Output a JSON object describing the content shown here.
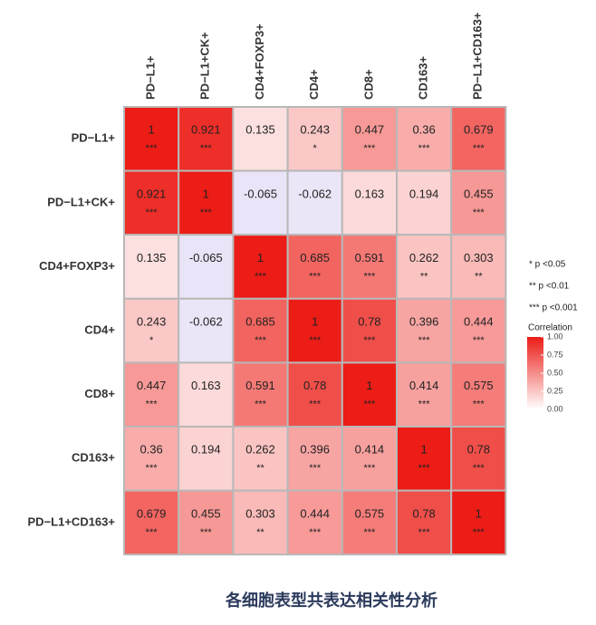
{
  "chart_data": {
    "type": "heatmap",
    "title": "各细胞表型共表达相关性分析",
    "columns": [
      "PD−L1+",
      "PD−L1+CK+",
      "CD4+FOXP3+",
      "CD4+",
      "CD8+",
      "CD163+",
      "PD−L1+CD163+"
    ],
    "rows": [
      "PD−L1+",
      "PD−L1+CK+",
      "CD4+FOXP3+",
      "CD4+",
      "CD8+",
      "CD163+",
      "PD−L1+CD163+"
    ],
    "values": [
      [
        1,
        0.921,
        0.135,
        0.243,
        0.447,
        0.36,
        0.679
      ],
      [
        0.921,
        1,
        -0.065,
        -0.062,
        0.163,
        0.194,
        0.455
      ],
      [
        0.135,
        -0.065,
        1,
        0.685,
        0.591,
        0.262,
        0.303
      ],
      [
        0.243,
        -0.062,
        0.685,
        1,
        0.78,
        0.396,
        0.444
      ],
      [
        0.447,
        0.163,
        0.591,
        0.78,
        1,
        0.414,
        0.575
      ],
      [
        0.36,
        0.194,
        0.262,
        0.396,
        0.414,
        1,
        0.78
      ],
      [
        0.679,
        0.455,
        0.303,
        0.444,
        0.575,
        0.78,
        1
      ]
    ],
    "significance": [
      [
        "***",
        "***",
        null,
        "*",
        "***",
        "***",
        "***"
      ],
      [
        "***",
        "***",
        null,
        null,
        null,
        null,
        "***"
      ],
      [
        null,
        null,
        "***",
        "***",
        "***",
        "**",
        "**"
      ],
      [
        "*",
        null,
        "***",
        "***",
        "***",
        "***",
        "***"
      ],
      [
        "***",
        null,
        "***",
        "***",
        "***",
        "***",
        "***"
      ],
      [
        "***",
        null,
        "**",
        "***",
        "***",
        "***",
        "***"
      ],
      [
        "***",
        "***",
        "**",
        "***",
        "***",
        "***",
        "***"
      ]
    ],
    "significance_legend": [
      "* p <0.05",
      "** p <0.01",
      "*** p <0.001"
    ],
    "colorbar_title": "Correlation",
    "clim": [
      0,
      1
    ],
    "cticks": [
      {
        "value": 0,
        "label": "0.00"
      },
      {
        "value": 0.25,
        "label": "0.25"
      },
      {
        "value": 0.5,
        "label": "0.50"
      },
      {
        "value": 0.75,
        "label": "0.75"
      },
      {
        "value": 1,
        "label": "1.00"
      }
    ],
    "colors": {
      "negative": "#e9e4f7",
      "low": "#ffffff",
      "high": "#ec1c16"
    }
  }
}
